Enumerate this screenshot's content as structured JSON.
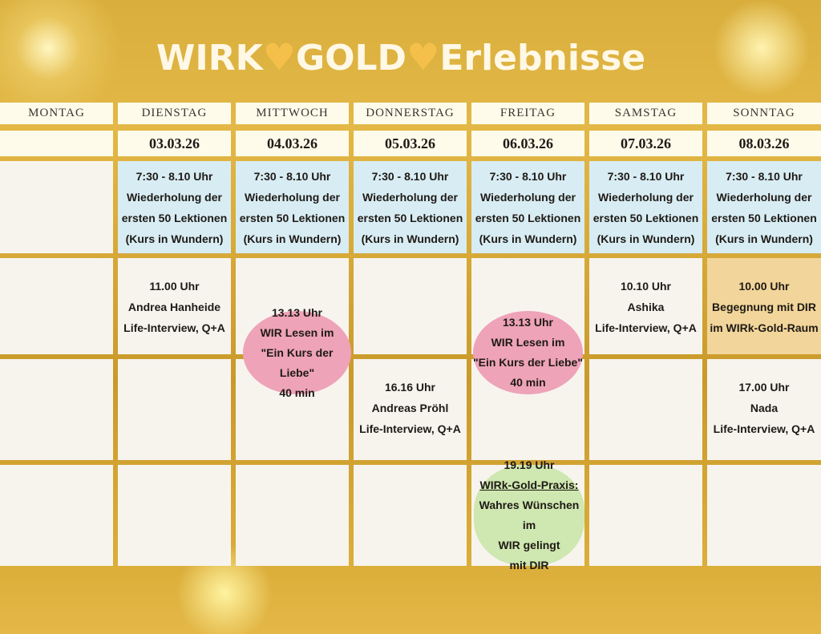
{
  "title": {
    "part1": "WIRK",
    "part2": "GOLD",
    "part3": "Erlebnisse",
    "heart_icon": "heart"
  },
  "days": [
    "MONTAG",
    "DIENSTAG",
    "MITTWOCH",
    "DONNERSTAG",
    "FREITAG",
    "SAMSTAG",
    "SONNTAG"
  ],
  "dates": [
    "",
    "03.03.26",
    "04.03.26",
    "05.03.26",
    "06.03.26",
    "07.03.26",
    "08.03.26"
  ],
  "morning": {
    "time": "7:30 - 8.10 Uhr",
    "l1": "Wiederholung der",
    "l2": "ersten 50 Lektionen",
    "l3": "(Kurs in Wundern)"
  },
  "events": {
    "tue": {
      "time": "11.00 Uhr",
      "name": "Andrea Hanheide",
      "desc": "Life-Interview, Q+A"
    },
    "sat": {
      "time": "10.10 Uhr",
      "name": "Ashika",
      "desc": "Life-Interview, Q+A"
    },
    "sun1": {
      "time": "10.00 Uhr",
      "name": "Begegnung mit DIR",
      "desc": "im WIRk-Gold-Raum"
    },
    "thu": {
      "time": "16.16 Uhr",
      "name": "Andreas Pröhl",
      "desc": "Life-Interview, Q+A"
    },
    "sun2": {
      "time": "17.00 Uhr",
      "name": "Nada",
      "desc": "Life-Interview, Q+A"
    },
    "lesen": {
      "time": "13.13 Uhr",
      "l1": "WIR Lesen im",
      "l2": "\"Ein Kurs der Liebe\"",
      "l3": "40 min"
    },
    "praxis": {
      "time": "19.19 Uhr",
      "l1": "WIRk-Gold-Praxis:",
      "l2": "Wahres Wünschen im",
      "l3": "WIR gelingt",
      "l4": "mit DIR"
    }
  },
  "colors": {
    "gold": "#d9ae3c",
    "blue": "#d8ecf3",
    "pink": "#eea3b8",
    "green": "#cfe7b0",
    "orange": "#f2d59a"
  }
}
